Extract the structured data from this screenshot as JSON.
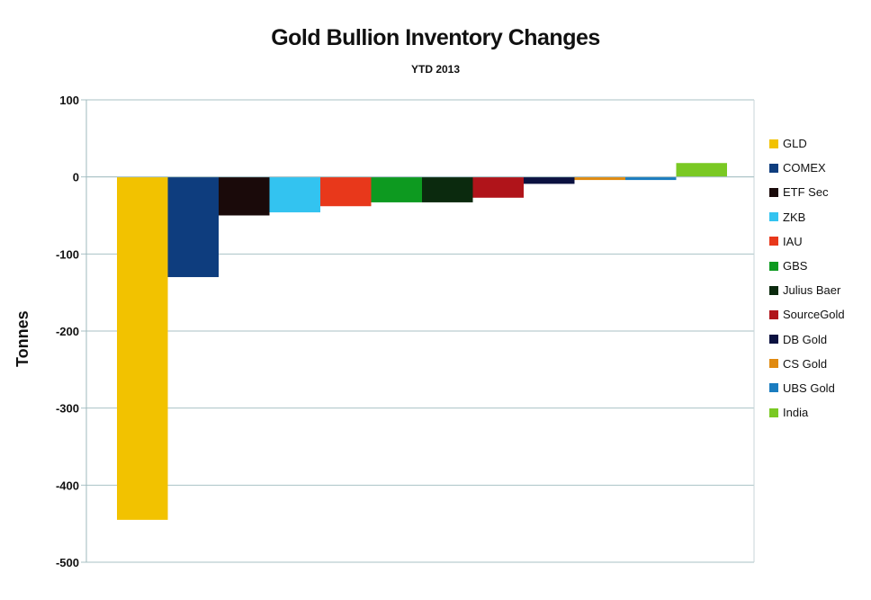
{
  "chart_data": {
    "type": "bar",
    "title": "Gold Bullion Inventory Changes",
    "subtitle": "YTD 2013",
    "ylabel": "Tonnes",
    "xlabel": "",
    "ylim": [
      -500,
      100
    ],
    "yticks": [
      "100",
      "0",
      "-100",
      "-200",
      "-300",
      "-400",
      "-500"
    ],
    "grid": true,
    "legend_position": "right",
    "categories": [
      "GLD",
      "COMEX",
      "ETF Sec",
      "ZKB",
      "IAU",
      "GBS",
      "Julius Baer",
      "SourceGold",
      "DB Gold",
      "CS Gold",
      "UBS Gold",
      "India"
    ],
    "values": [
      -445,
      -130,
      -50,
      -46,
      -38,
      -33,
      -33,
      -27,
      -9,
      -4,
      -4,
      18
    ],
    "colors": [
      "#f2c200",
      "#0e3d7e",
      "#1a0a0a",
      "#33c3f0",
      "#e8381b",
      "#0d9a20",
      "#0b2a0e",
      "#b0141a",
      "#0b1140",
      "#e08a10",
      "#1a7cbf",
      "#7ac923"
    ]
  }
}
